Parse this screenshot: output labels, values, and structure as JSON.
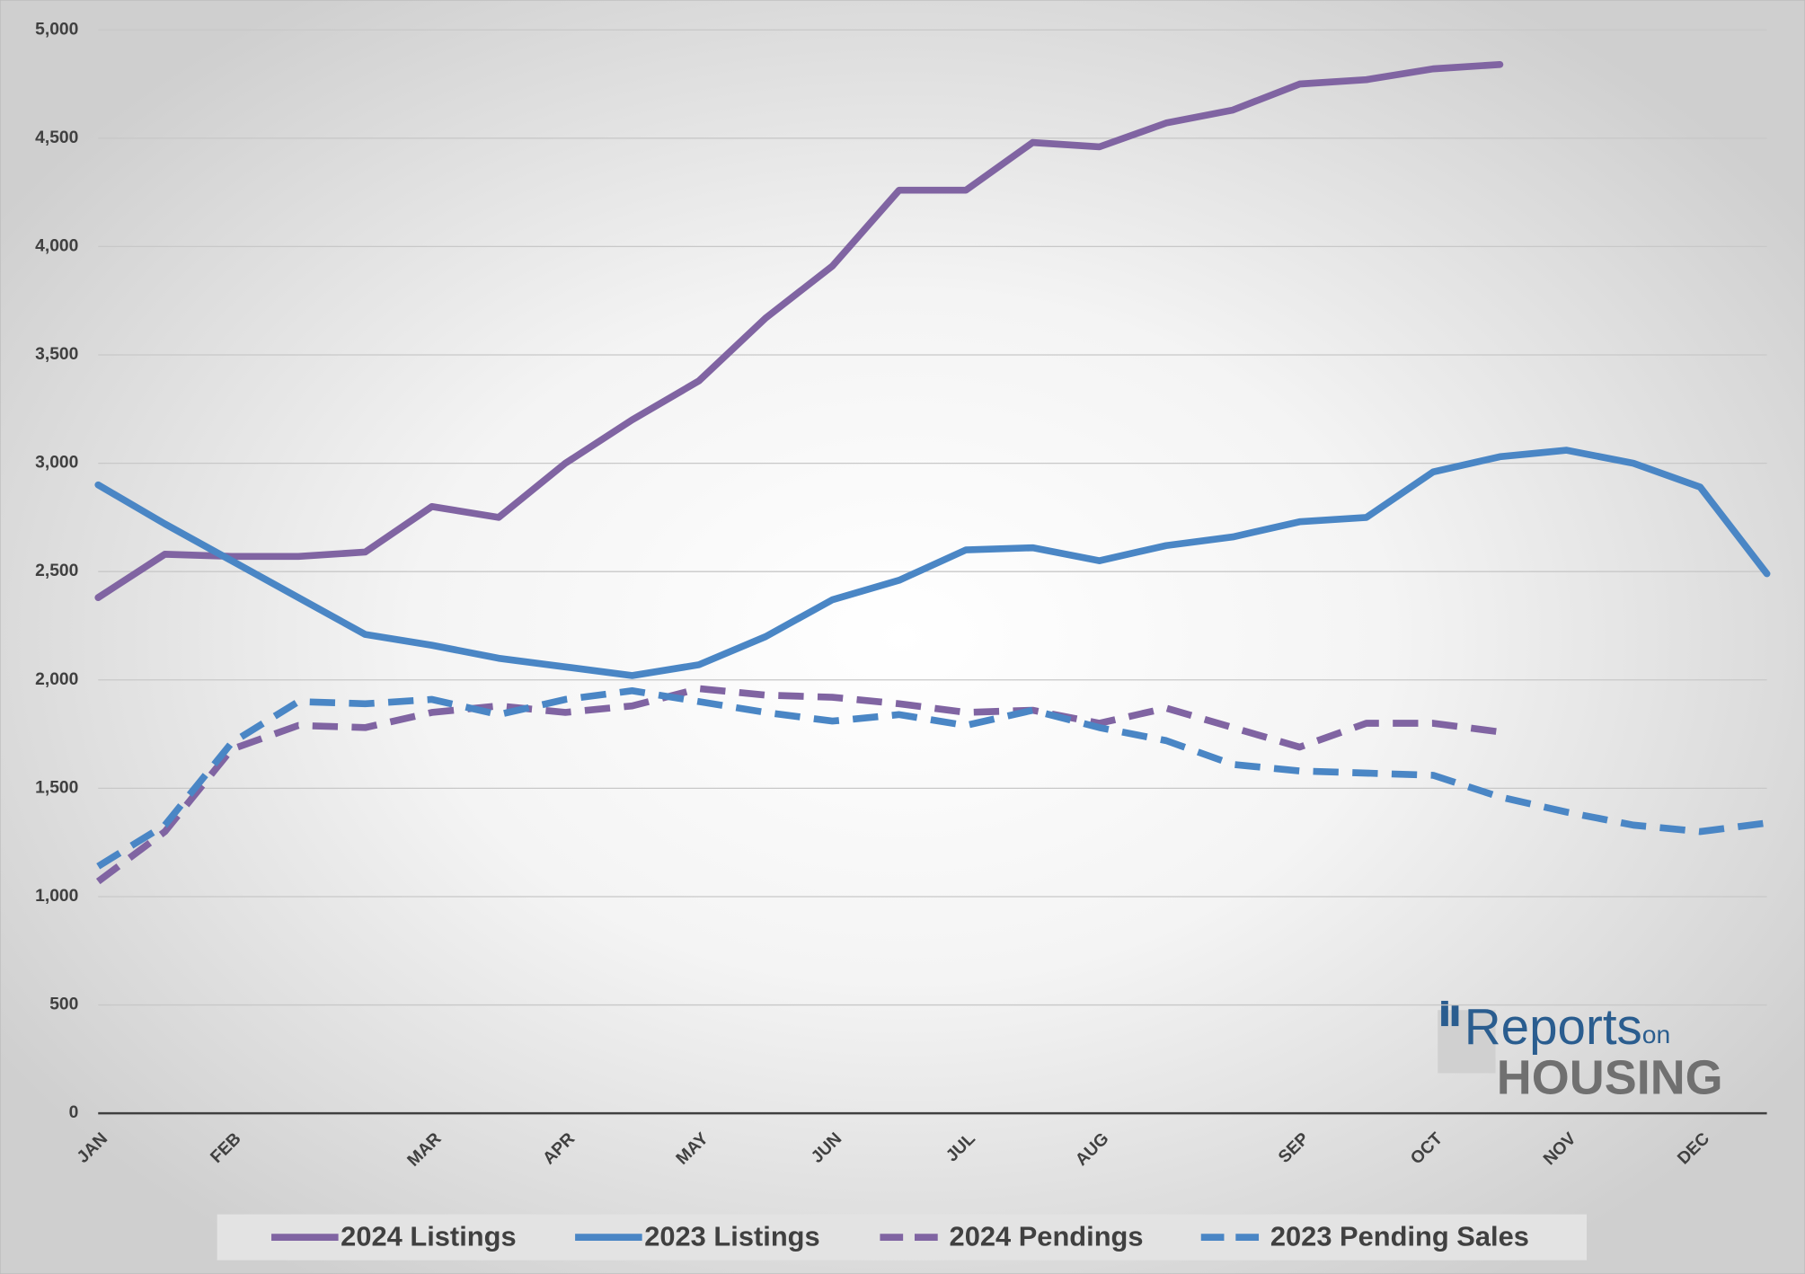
{
  "chart_data": {
    "type": "line",
    "categories": [
      "JAN",
      null,
      "FEB",
      null,
      null,
      "MAR",
      null,
      "APR",
      null,
      "MAY",
      null,
      "JUN",
      null,
      "JUL",
      null,
      "AUG",
      null,
      null,
      "SEP",
      null,
      "OCT",
      null,
      "NOV",
      null,
      "DEC",
      null
    ],
    "series": [
      {
        "name": "2024 Listings",
        "color": "#8064a2",
        "dash": false,
        "values": [
          2380,
          2580,
          2570,
          2570,
          2590,
          2800,
          2750,
          3000,
          3200,
          3380,
          3670,
          3910,
          4260,
          4260,
          4480,
          4460,
          4570,
          4630,
          4750,
          4770,
          4820,
          4840,
          null,
          null,
          null,
          null
        ]
      },
      {
        "name": "2023 Listings",
        "color": "#4a86c5",
        "dash": false,
        "values": [
          2900,
          2720,
          2550,
          2380,
          2210,
          2160,
          2100,
          2060,
          2020,
          2070,
          2200,
          2370,
          2460,
          2600,
          2610,
          2550,
          2620,
          2660,
          2730,
          2750,
          2960,
          3030,
          3060,
          3000,
          2890,
          2490
        ]
      },
      {
        "name": "2024 Pendings",
        "color": "#8064a2",
        "dash": true,
        "values": [
          1070,
          1300,
          1680,
          1790,
          1780,
          1850,
          1880,
          1850,
          1880,
          1960,
          1930,
          1920,
          1890,
          1850,
          1860,
          1800,
          1870,
          1780,
          1690,
          1800,
          1800,
          1760,
          null,
          null,
          null,
          null
        ]
      },
      {
        "name": "2023 Pending Sales",
        "color": "#4a86c5",
        "dash": true,
        "values": [
          1140,
          1330,
          1710,
          1900,
          1890,
          1910,
          1840,
          1910,
          1950,
          1900,
          1850,
          1810,
          1840,
          1790,
          1860,
          1780,
          1720,
          1610,
          1580,
          1570,
          1560,
          1460,
          1390,
          1330,
          1300,
          1340
        ]
      }
    ],
    "ylim": [
      0,
      5000
    ],
    "yticks": [
      0,
      500,
      {
        "value": 1000,
        "label": "1,000"
      },
      {
        "value": 1500,
        "label": "1,500"
      },
      {
        "value": 2000,
        "label": "2,000"
      },
      {
        "value": 2500,
        "label": "2,500"
      },
      {
        "value": 3000,
        "label": "3,000"
      },
      {
        "value": 3500,
        "label": "3,500"
      },
      {
        "value": 4000,
        "label": "4,000"
      },
      {
        "value": 4500,
        "label": "4,500"
      },
      {
        "value": 5000,
        "label": "5,000"
      }
    ],
    "grid": true,
    "legend": "bottom",
    "logo": {
      "word1": "Reports",
      "word2": "on",
      "word3": "HOUSING"
    }
  }
}
